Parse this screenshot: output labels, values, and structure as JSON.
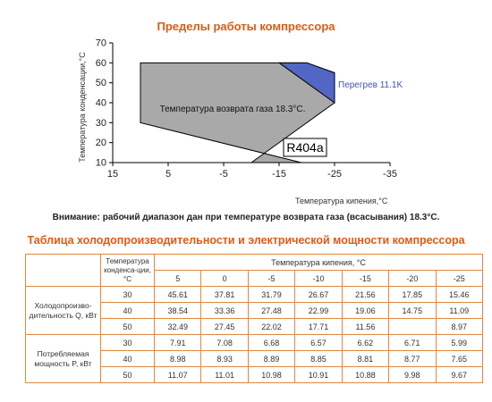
{
  "chart_data": {
    "type": "area",
    "title": "Пределы работы компрессора",
    "xlabel": "Температура кипения,°C",
    "ylabel": "Температура конденсации,°C",
    "x_ticks": [
      "15",
      "5",
      "-5",
      "-15",
      "-25",
      "-35"
    ],
    "y_ticks": [
      "10",
      "20",
      "30",
      "40",
      "50",
      "60",
      "70"
    ],
    "xlim": [
      15,
      -35
    ],
    "ylim": [
      10,
      70
    ],
    "series": [
      {
        "name": "Температура возврата газа 18.3°C.",
        "color": "#a9a9a9",
        "points": [
          [
            10,
            30
          ],
          [
            10,
            60
          ],
          [
            -20,
            60
          ],
          [
            -25,
            55
          ],
          [
            -25,
            40
          ],
          [
            -10,
            10
          ],
          [
            -19,
            10
          ],
          [
            10,
            30
          ]
        ]
      },
      {
        "name": "Перегрев 11.1K",
        "color": "#5266c6",
        "points": [
          [
            -15,
            60
          ],
          [
            -20,
            60
          ],
          [
            -25,
            55
          ],
          [
            -25,
            40
          ],
          [
            -15,
            60
          ]
        ]
      }
    ],
    "badge": "R404a"
  },
  "note": "Внимание: рабочий диапазон дан при температуре возврата газа (всасывания) 18.3°С.",
  "table": {
    "title": "Таблица холодопроизводительности и электрической мощности компрессора",
    "cond_header": "Температура конденса-ции, °C",
    "evap_header": "Температура кипения, °C",
    "evap_temps": [
      "5",
      "0",
      "-5",
      "-10",
      "-15",
      "-20",
      "-25"
    ],
    "groups": [
      {
        "label": "Холодопроизво-дительность Q, кВт",
        "rows": [
          {
            "cond": "30",
            "values": [
              "45.61",
              "37.81",
              "31.79",
              "26.67",
              "21.56",
              "17.85",
              "15.46"
            ]
          },
          {
            "cond": "40",
            "values": [
              "38.54",
              "33.36",
              "27.48",
              "22.99",
              "19.06",
              "14.75",
              "11.09"
            ]
          },
          {
            "cond": "50",
            "values": [
              "32.49",
              "27.45",
              "22.02",
              "17.71",
              "11.56",
              "",
              "8.97"
            ]
          }
        ]
      },
      {
        "label": "Потребляемая мощность P, кВт",
        "rows": [
          {
            "cond": "30",
            "values": [
              "7.91",
              "7.08",
              "6.68",
              "6.57",
              "6.62",
              "6.71",
              "5.99"
            ]
          },
          {
            "cond": "40",
            "values": [
              "8.98",
              "8.93",
              "8.89",
              "8.85",
              "8.81",
              "8.77",
              "7.65"
            ]
          },
          {
            "cond": "50",
            "values": [
              "11.07",
              "11.01",
              "10.98",
              "10.91",
              "10.88",
              "9.98",
              "9.67"
            ]
          }
        ]
      }
    ]
  }
}
